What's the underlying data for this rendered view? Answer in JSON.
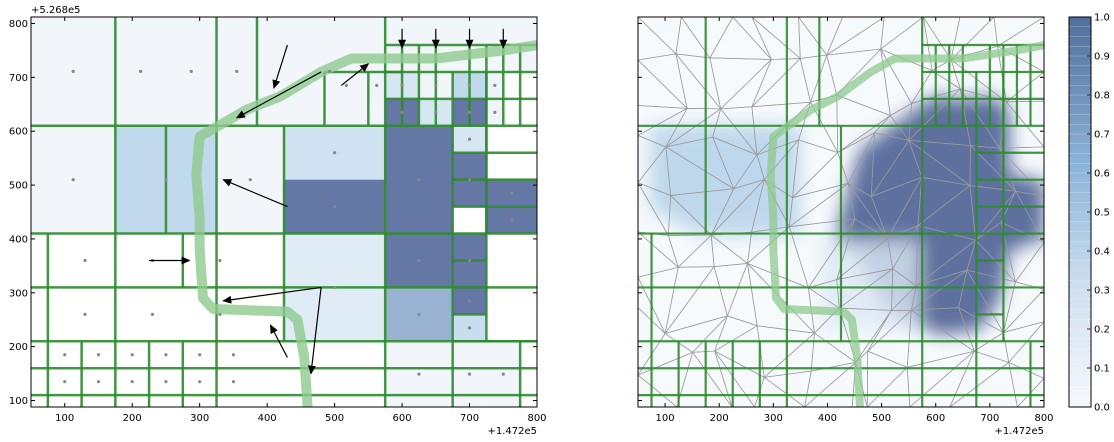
{
  "chart_data": [
    {
      "type": "quadtree-map",
      "title": "",
      "xlabel": "",
      "ylabel": "",
      "xlim": [
        50,
        800
      ],
      "ylim": [
        88,
        812
      ],
      "x_offset_label": "+1.472e5",
      "y_offset_label": "+5.268e5",
      "xticks": [
        100,
        200,
        300,
        400,
        500,
        600,
        700,
        800
      ],
      "yticks": [
        100,
        200,
        300,
        400,
        500,
        600,
        700,
        800
      ],
      "cells": [
        {
          "x0": 50,
          "x1": 175,
          "y0": 610,
          "y1": 812,
          "v": 0.02
        },
        {
          "x0": 175,
          "x1": 250,
          "y0": 610,
          "y1": 812,
          "v": 0.02
        },
        {
          "x0": 250,
          "x1": 325,
          "y0": 610,
          "y1": 812,
          "v": 0.02
        },
        {
          "x0": 325,
          "x1": 385,
          "y0": 610,
          "y1": 812,
          "v": 0.02
        },
        {
          "x0": 385,
          "x1": 600,
          "y0": 610,
          "y1": 812,
          "v": 0.02
        },
        {
          "x0": 600,
          "x1": 800,
          "y0": 710,
          "y1": 812,
          "v": 0.02
        },
        {
          "x0": 485,
          "x1": 550,
          "y0": 660,
          "y1": 710,
          "v": 0.02
        },
        {
          "x0": 550,
          "x1": 575,
          "y0": 660,
          "y1": 710,
          "v": 0.05
        },
        {
          "x0": 575,
          "x1": 625,
          "y0": 660,
          "y1": 710,
          "v": 0.2
        },
        {
          "x0": 625,
          "x1": 675,
          "y0": 660,
          "y1": 710,
          "v": 0.02
        },
        {
          "x0": 675,
          "x1": 725,
          "y0": 660,
          "y1": 710,
          "v": 0.35
        },
        {
          "x0": 725,
          "x1": 750,
          "y0": 660,
          "y1": 710,
          "v": 0.05
        },
        {
          "x0": 575,
          "x1": 625,
          "y0": 610,
          "y1": 660,
          "v": 0.95
        },
        {
          "x0": 625,
          "x1": 675,
          "y0": 610,
          "y1": 660,
          "v": 0.2
        },
        {
          "x0": 675,
          "x1": 725,
          "y0": 610,
          "y1": 660,
          "v": 0.95
        },
        {
          "x0": 725,
          "x1": 750,
          "y0": 610,
          "y1": 660,
          "v": 0.05
        },
        {
          "x0": 50,
          "x1": 175,
          "y0": 410,
          "y1": 610,
          "v": 0.02
        },
        {
          "x0": 175,
          "x1": 325,
          "y0": 410,
          "y1": 610,
          "v": 0.35
        },
        {
          "x0": 325,
          "x1": 425,
          "y0": 410,
          "y1": 610,
          "v": 0.02
        },
        {
          "x0": 425,
          "x1": 575,
          "y0": 510,
          "y1": 610,
          "v": 0.25
        },
        {
          "x0": 425,
          "x1": 575,
          "y0": 410,
          "y1": 510,
          "v": 0.95
        },
        {
          "x0": 575,
          "x1": 675,
          "y0": 410,
          "y1": 610,
          "v": 0.95
        },
        {
          "x0": 675,
          "x1": 725,
          "y0": 560,
          "y1": 610,
          "v": 0.2
        },
        {
          "x0": 675,
          "x1": 725,
          "y0": 460,
          "y1": 560,
          "v": 0.95
        },
        {
          "x0": 725,
          "x1": 800,
          "y0": 460,
          "y1": 510,
          "v": 0.95
        },
        {
          "x0": 725,
          "x1": 800,
          "y0": 410,
          "y1": 460,
          "v": 0.95
        },
        {
          "x0": 425,
          "x1": 575,
          "y0": 210,
          "y1": 410,
          "v": 0.15
        },
        {
          "x0": 575,
          "x1": 675,
          "y0": 310,
          "y1": 410,
          "v": 0.95
        },
        {
          "x0": 675,
          "x1": 725,
          "y0": 310,
          "y1": 410,
          "v": 0.95
        },
        {
          "x0": 575,
          "x1": 675,
          "y0": 210,
          "y1": 310,
          "v": 0.6
        },
        {
          "x0": 675,
          "x1": 725,
          "y0": 260,
          "y1": 310,
          "v": 0.95
        },
        {
          "x0": 675,
          "x1": 725,
          "y0": 210,
          "y1": 260,
          "v": 0.3
        },
        {
          "x0": 575,
          "x1": 675,
          "y0": 88,
          "y1": 210,
          "v": 0.02
        },
        {
          "x0": 675,
          "x1": 725,
          "y0": 88,
          "y1": 210,
          "v": 0.02
        },
        {
          "x0": 725,
          "x1": 775,
          "y0": 88,
          "y1": 210,
          "v": 0.02
        }
      ],
      "quadtree_x": [
        50,
        75,
        125,
        175,
        225,
        275,
        325,
        385,
        425,
        500,
        550,
        575,
        625,
        675,
        725,
        775,
        800
      ],
      "path": [
        [
          800,
          760
        ],
        [
          750,
          750
        ],
        [
          650,
          735
        ],
        [
          525,
          735
        ],
        [
          480,
          710
        ],
        [
          420,
          665
        ],
        [
          370,
          640
        ],
        [
          300,
          590
        ],
        [
          295,
          520
        ],
        [
          300,
          440
        ],
        [
          300,
          380
        ],
        [
          305,
          290
        ],
        [
          320,
          270
        ],
        [
          430,
          265
        ],
        [
          445,
          250
        ],
        [
          455,
          180
        ],
        [
          460,
          88
        ]
      ],
      "arrows": [
        {
          "from": [
            430,
            760
          ],
          "to": [
            410,
            680
          ]
        },
        {
          "from": [
            480,
            710
          ],
          "to": [
            355,
            625
          ]
        },
        {
          "from": [
            510,
            685
          ],
          "to": [
            550,
            725
          ]
        },
        {
          "from": [
            600,
            790
          ],
          "to": [
            600,
            755
          ]
        },
        {
          "from": [
            650,
            790
          ],
          "to": [
            650,
            755
          ]
        },
        {
          "from": [
            700,
            790
          ],
          "to": [
            700,
            755
          ]
        },
        {
          "from": [
            750,
            790
          ],
          "to": [
            750,
            755
          ]
        },
        {
          "from": [
            430,
            460
          ],
          "to": [
            335,
            510
          ]
        },
        {
          "from": [
            225,
            360
          ],
          "to": [
            285,
            360
          ]
        },
        {
          "from": [
            480,
            310
          ],
          "to": [
            335,
            285
          ]
        },
        {
          "from": [
            480,
            310
          ],
          "to": [
            465,
            150
          ]
        },
        {
          "from": [
            430,
            180
          ],
          "to": [
            405,
            240
          ]
        }
      ]
    },
    {
      "type": "triangulated-heatmap",
      "title": "",
      "xlabel": "",
      "ylabel": "",
      "xlim": [
        50,
        800
      ],
      "ylim": [
        88,
        812
      ],
      "x_offset_label": "+1.472e5",
      "xticks": [
        100,
        200,
        300,
        400,
        500,
        600,
        700,
        800
      ],
      "colorbar": {
        "ticks": [
          "0.0",
          "0.1",
          "0.2",
          "0.3",
          "0.4",
          "0.5",
          "0.6",
          "0.7",
          "0.8",
          "0.9",
          "1.0"
        ],
        "cmap": "blues-alpha"
      }
    }
  ],
  "colors": {
    "grid_green": "#2e8b2e",
    "path_green": "#8ec98e",
    "mesh_gray": "#9a9a9a",
    "cell_dark": "#5d6f9e",
    "cell_light": "#f5f8fc"
  }
}
